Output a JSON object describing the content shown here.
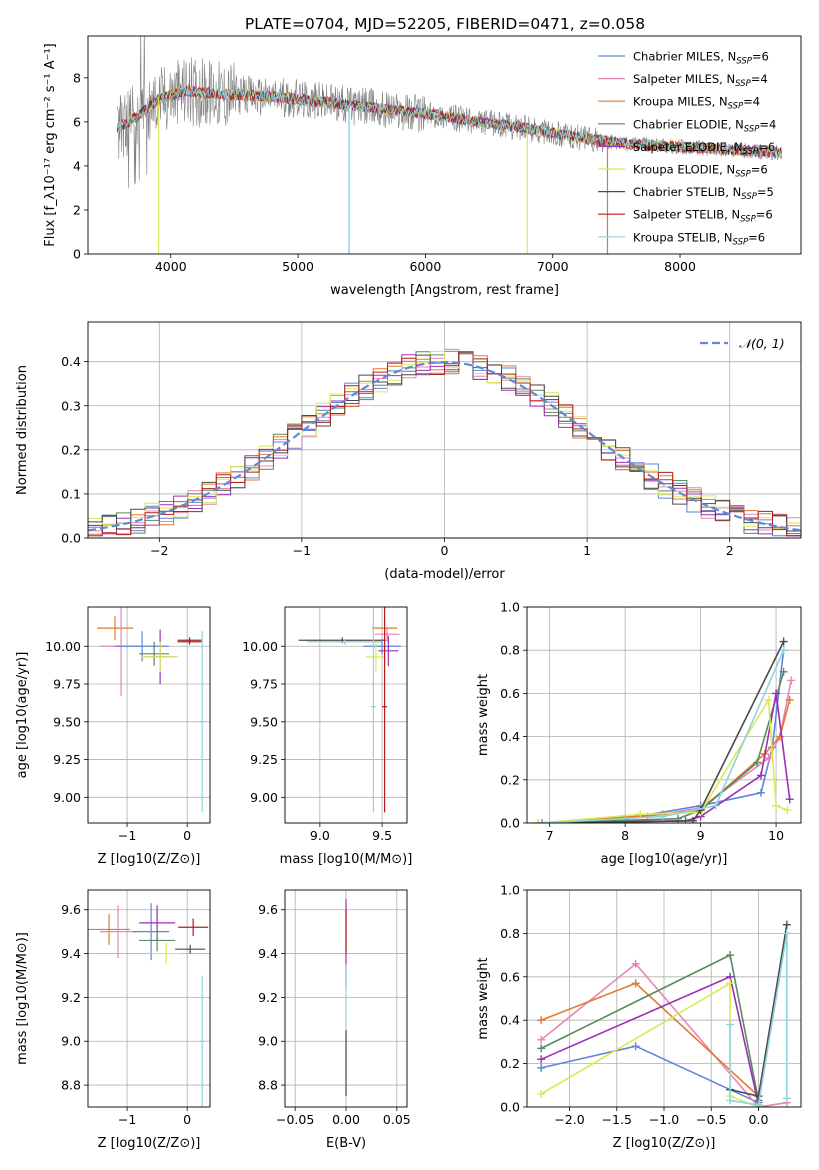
{
  "figure_title": "PLATE=0704, MJD=52205, FIBERID=0471, z=0.058",
  "colors": {
    "chabrier_miles": "#5f86d6",
    "salpeter_miles": "#e884b9",
    "kroupa_miles": "#e07a2f",
    "chabrier_elodie": "#5a8a5f",
    "salpeter_elodie": "#9b30b5",
    "kroupa_elodie": "#d9ea55",
    "chabrier_stelib": "#4a4a4a",
    "salpeter_stelib": "#b51d1d",
    "kroupa_stelib": "#8fd3dd",
    "observed": "#808080",
    "model_cyan": "#6ed3dc",
    "normal": "#5b8bd8"
  },
  "chart_data": [
    {
      "type": "line",
      "panel": "spectrum",
      "xlabel": "wavelength [Angstrom, rest frame]",
      "ylabel": "Flux [f_λ10⁻¹⁷ erg cm⁻² s⁻¹ A⁻¹]",
      "xlim": [
        3350,
        8950
      ],
      "ylim": [
        0,
        9.9
      ],
      "xticks": [
        4000,
        5000,
        6000,
        7000,
        8000
      ],
      "yticks": [
        0,
        2,
        4,
        6,
        8
      ],
      "grid": false,
      "legend_position": "top-right",
      "legend": [
        {
          "key": "chabrier_miles",
          "label": "Chabrier MILES, N",
          "sub": "SSP",
          "suffix": "=6"
        },
        {
          "key": "salpeter_miles",
          "label": "Salpeter MILES, N",
          "sub": "SSP",
          "suffix": "=4"
        },
        {
          "key": "kroupa_miles",
          "label": "Kroupa MILES, N",
          "sub": "SSP",
          "suffix": "=4"
        },
        {
          "key": "chabrier_elodie",
          "label": "Chabrier ELODIE, N",
          "sub": "SSP",
          "suffix": "=4"
        },
        {
          "key": "salpeter_elodie",
          "label": "Salpeter ELODIE, N",
          "sub": "SSP",
          "suffix": "=6"
        },
        {
          "key": "kroupa_elodie",
          "label": "Kroupa ELODIE, N",
          "sub": "SSP",
          "suffix": "=6"
        },
        {
          "key": "chabrier_stelib",
          "label": "Chabrier STELIB, N",
          "sub": "SSP",
          "suffix": "=5"
        },
        {
          "key": "salpeter_stelib",
          "label": "Salpeter STELIB, N",
          "sub": "SSP",
          "suffix": "=6"
        },
        {
          "key": "kroupa_stelib",
          "label": "Kroupa STELIB, N",
          "sub": "SSP",
          "suffix": "=6"
        }
      ],
      "continuum": {
        "x": [
          3580,
          3700,
          3900,
          4100,
          4300,
          4600,
          4900,
          5200,
          5500,
          5800,
          6100,
          6400,
          6700,
          7000,
          7300,
          7600,
          7900,
          8200,
          8500,
          8800
        ],
        "y": [
          5.7,
          6.1,
          7.0,
          7.4,
          7.3,
          7.2,
          7.1,
          6.9,
          6.7,
          6.5,
          6.3,
          6.0,
          5.8,
          5.5,
          5.2,
          5.0,
          4.9,
          4.8,
          4.7,
          4.6
        ]
      },
      "absorption_spikes": [
        {
          "x": 3905,
          "y": 0
        },
        {
          "x": 5400,
          "y": 0
        },
        {
          "x": 6800,
          "y": 0
        },
        {
          "x": 7430,
          "y": 0
        }
      ]
    },
    {
      "type": "line",
      "panel": "residuals",
      "xlabel": "(data-model)/error",
      "ylabel": "Normed distribution",
      "xlim": [
        -2.5,
        2.5
      ],
      "ylim": [
        0,
        0.49
      ],
      "xticks": [
        -2,
        -1,
        0,
        1,
        2
      ],
      "yticks": [
        0.0,
        0.1,
        0.2,
        0.3,
        0.4
      ],
      "grid": true,
      "legend_position": "top-right",
      "legend": [
        {
          "label": "𝒩(0, 1)"
        }
      ],
      "bin_width": 0.1,
      "series": [
        {
          "key": "chabrier_miles",
          "jitter_seed": 1
        },
        {
          "key": "salpeter_miles",
          "jitter_seed": 2
        },
        {
          "key": "kroupa_miles",
          "jitter_seed": 3
        },
        {
          "key": "chabrier_elodie",
          "jitter_seed": 4
        },
        {
          "key": "salpeter_elodie",
          "jitter_seed": 5
        },
        {
          "key": "kroupa_elodie",
          "jitter_seed": 6
        },
        {
          "key": "chabrier_stelib",
          "jitter_seed": 7
        },
        {
          "key": "salpeter_stelib",
          "jitter_seed": 8
        }
      ]
    },
    {
      "type": "scatter",
      "panel": "age_vs_Z",
      "xlabel": "Z [log10(Z/Z⊙)]",
      "ylabel": "age [log10(age/yr)]",
      "xlim": [
        -1.65,
        0.38
      ],
      "ylim": [
        8.83,
        10.26
      ],
      "xticks": [
        -1,
        0
      ],
      "yticks": [
        9.0,
        9.25,
        9.5,
        9.75,
        10.0
      ],
      "grid": true,
      "points": [
        {
          "key": "kroupa_miles",
          "x": -1.2,
          "xerr": 0.3,
          "y": 10.12,
          "yerr": 0.08
        },
        {
          "key": "salpeter_miles",
          "x": -1.1,
          "xerr": 0.35,
          "y": 10.0,
          "yerr": 0.33
        },
        {
          "key": "chabrier_miles",
          "x": -0.75,
          "xerr": 0.45,
          "y": 10.0,
          "yerr": 0.1
        },
        {
          "key": "chabrier_elodie",
          "x": -0.55,
          "xerr": 0.25,
          "y": 9.95,
          "yerr": 0.08
        },
        {
          "key": "salpeter_elodie",
          "x": -0.45,
          "xerr": 0.25,
          "y": 9.93,
          "yerr": 0.18
        },
        {
          "key": "kroupa_elodie",
          "x": -0.45,
          "xerr": 0.3,
          "y": 9.93,
          "yerr": 0.1
        },
        {
          "key": "chabrier_stelib",
          "x": 0.04,
          "xerr": 0.2,
          "y": 10.03,
          "yerr": 0.02
        },
        {
          "key": "salpeter_stelib",
          "x": 0.04,
          "xerr": 0.2,
          "y": 10.04,
          "yerr": 0.02
        },
        {
          "key": "kroupa_stelib",
          "x": 0.25,
          "xerr": 0.05,
          "y": 9.5,
          "yerr": 0.6
        }
      ]
    },
    {
      "type": "scatter",
      "panel": "age_vs_mass",
      "xlabel": "mass [log10(M/M⊙)]",
      "ylabel": "",
      "xlim": [
        8.72,
        9.7
      ],
      "ylim": [
        8.83,
        10.26
      ],
      "xticks": [
        9.0,
        9.5
      ],
      "yticks": [
        9.0,
        9.25,
        9.5,
        9.75,
        10.0
      ],
      "grid": true,
      "points": [
        {
          "key": "chabrier_stelib",
          "x": 9.18,
          "xerr": 0.35,
          "y": 10.04,
          "yerr": 0.02
        },
        {
          "key": "kroupa_stelib",
          "x": 9.2,
          "xerr": 0.3,
          "y": 10.03,
          "yerr": 0.02
        },
        {
          "key": "chabrier_miles",
          "x": 9.5,
          "xerr": 0.15,
          "y": 10.0,
          "yerr": 0.05
        },
        {
          "key": "kroupa_miles",
          "x": 9.52,
          "xerr": 0.1,
          "y": 10.12,
          "yerr": 0.05
        },
        {
          "key": "salpeter_miles",
          "x": 9.54,
          "xerr": 0.1,
          "y": 10.08,
          "yerr": 0.05
        },
        {
          "key": "kroupa_elodie",
          "x": 9.45,
          "xerr": 0.08,
          "y": 9.93,
          "yerr": 0.1
        },
        {
          "key": "salpeter_elodie",
          "x": 9.55,
          "xerr": 0.08,
          "y": 9.97,
          "yerr": 0.1
        },
        {
          "key": "kroupa_stelib",
          "x": 9.43,
          "xerr": 0.02,
          "y": 9.6,
          "yerr": 0.7
        },
        {
          "key": "salpeter_stelib",
          "x": 9.52,
          "xerr": 0.02,
          "y": 9.6,
          "yerr": 0.7
        }
      ]
    },
    {
      "type": "line",
      "panel": "mass_weight_vs_age",
      "xlabel": "age [log10(age/yr)]",
      "ylabel": "mass weight",
      "xlim": [
        6.7,
        10.33
      ],
      "ylim": [
        0,
        1.0
      ],
      "xticks": [
        7,
        8,
        9,
        10
      ],
      "yticks": [
        0.0,
        0.2,
        0.4,
        0.6,
        0.8,
        1.0
      ],
      "grid": true,
      "series": [
        {
          "key": "chabrier_miles",
          "x": [
            6.9,
            8.0,
            9.0,
            9.8,
            9.95,
            10.1
          ],
          "y": [
            0.0,
            0.02,
            0.08,
            0.14,
            0.35,
            0.8
          ]
        },
        {
          "key": "salpeter_miles",
          "x": [
            6.85,
            8.3,
            9.0,
            9.9,
            10.05,
            10.2
          ],
          "y": [
            0.0,
            0.03,
            0.07,
            0.3,
            0.4,
            0.66
          ]
        },
        {
          "key": "kroupa_miles",
          "x": [
            6.85,
            8.5,
            9.0,
            9.85,
            10.05,
            10.18
          ],
          "y": [
            0.0,
            0.04,
            0.06,
            0.32,
            0.4,
            0.57
          ]
        },
        {
          "key": "chabrier_elodie",
          "x": [
            6.9,
            8.7,
            9.0,
            9.75,
            10.1
          ],
          "y": [
            0.0,
            0.02,
            0.06,
            0.28,
            0.7
          ]
        },
        {
          "key": "salpeter_elodie",
          "x": [
            6.9,
            8.8,
            9.0,
            9.8,
            10.0,
            10.18
          ],
          "y": [
            0.0,
            0.01,
            0.03,
            0.22,
            0.6,
            0.11
          ]
        },
        {
          "key": "kroupa_elodie",
          "x": [
            6.85,
            8.2,
            9.0,
            9.9,
            10.0,
            10.15
          ],
          "y": [
            0.0,
            0.04,
            0.05,
            0.57,
            0.08,
            0.06
          ]
        },
        {
          "key": "chabrier_stelib",
          "x": [
            6.9,
            8.9,
            9.0,
            10.1
          ],
          "y": [
            0.0,
            0.01,
            0.06,
            0.84
          ]
        },
        {
          "key": "kroupa_stelib",
          "x": [
            6.9,
            8.5,
            9.2,
            10.1
          ],
          "y": [
            0.0,
            0.03,
            0.08,
            0.8
          ]
        }
      ]
    },
    {
      "type": "scatter",
      "panel": "mass_vs_Z",
      "xlabel": "Z [log10(Z/Z⊙)]",
      "ylabel": "mass [log10(M/M⊙)]",
      "xlim": [
        -1.65,
        0.38
      ],
      "ylim": [
        8.7,
        9.69
      ],
      "xticks": [
        -1,
        0
      ],
      "yticks": [
        8.8,
        9.0,
        9.2,
        9.4,
        9.6
      ],
      "grid": true,
      "points": [
        {
          "key": "kroupa_miles",
          "x": -1.3,
          "xerr": 0.35,
          "y": 9.51,
          "yerr": 0.07
        },
        {
          "key": "salpeter_miles",
          "x": -1.15,
          "xerr": 0.3,
          "y": 9.5,
          "yerr": 0.12
        },
        {
          "key": "chabrier_miles",
          "x": -0.6,
          "xerr": 0.3,
          "y": 9.5,
          "yerr": 0.13
        },
        {
          "key": "salpeter_elodie",
          "x": -0.5,
          "xerr": 0.3,
          "y": 9.54,
          "yerr": 0.08
        },
        {
          "key": "chabrier_elodie",
          "x": -0.5,
          "xerr": 0.3,
          "y": 9.46,
          "yerr": 0.05
        },
        {
          "key": "kroupa_elodie",
          "x": -0.35,
          "xerr": 0.25,
          "y": 9.4,
          "yerr": 0.05
        },
        {
          "key": "chabrier_stelib",
          "x": 0.05,
          "xerr": 0.25,
          "y": 9.42,
          "yerr": 0.02
        },
        {
          "key": "salpeter_stelib",
          "x": 0.1,
          "xerr": 0.25,
          "y": 9.52,
          "yerr": 0.04
        },
        {
          "key": "kroupa_stelib",
          "x": 0.25,
          "xerr": 0.04,
          "y": 9.0,
          "yerr": 0.3
        }
      ]
    },
    {
      "type": "scatter",
      "panel": "mass_vs_ebv",
      "xlabel": "E(B-V)",
      "ylabel": "",
      "xlim": [
        -0.06,
        0.06
      ],
      "ylim": [
        8.7,
        9.69
      ],
      "xticks": [
        -0.05,
        0.0,
        0.05
      ],
      "yticks": [
        8.8,
        9.0,
        9.2,
        9.4,
        9.6
      ],
      "grid": true,
      "points": [
        {
          "key": "salpeter_elodie",
          "x": 0.0,
          "xerr": 0.0,
          "y": 9.45,
          "yerr": 0.2
        },
        {
          "key": "salpeter_stelib",
          "x": 0.0,
          "xerr": 0.0,
          "y": 9.5,
          "yerr": 0.1
        },
        {
          "key": "kroupa_stelib",
          "x": 0.0,
          "xerr": 0.0,
          "y": 9.1,
          "yerr": 0.25
        },
        {
          "key": "chabrier_stelib",
          "x": 0.0,
          "xerr": 0.0,
          "y": 8.9,
          "yerr": 0.15
        }
      ]
    },
    {
      "type": "line",
      "panel": "mass_weight_vs_Z",
      "xlabel": "Z [log10(Z/Z⊙)]",
      "ylabel": "mass weight",
      "xlim": [
        -2.45,
        0.45
      ],
      "ylim": [
        0,
        1.0
      ],
      "xticks": [
        -2.0,
        -1.5,
        -1.0,
        -0.5,
        0.0
      ],
      "yticks": [
        0.0,
        0.2,
        0.4,
        0.6,
        0.8,
        1.0
      ],
      "grid": true,
      "series": [
        {
          "key": "chabrier_miles",
          "x": [
            -2.3,
            -1.3,
            0.0
          ],
          "y": [
            0.18,
            0.28,
            0.02
          ]
        },
        {
          "key": "salpeter_miles",
          "x": [
            -2.3,
            -1.3,
            0.0,
            0.3
          ],
          "y": [
            0.31,
            0.66,
            0.0,
            0.02
          ]
        },
        {
          "key": "kroupa_miles",
          "x": [
            -2.3,
            -1.3,
            0.0
          ],
          "y": [
            0.4,
            0.57,
            0.05
          ]
        },
        {
          "key": "chabrier_elodie",
          "x": [
            -2.3,
            -0.3,
            0.0
          ],
          "y": [
            0.27,
            0.7,
            0.03
          ]
        },
        {
          "key": "salpeter_elodie",
          "x": [
            -2.3,
            -0.3,
            0.0
          ],
          "y": [
            0.22,
            0.6,
            0.01
          ]
        },
        {
          "key": "kroupa_elodie",
          "x": [
            -2.3,
            -0.3,
            -0.3,
            0.0
          ],
          "y": [
            0.06,
            0.57,
            0.05,
            0.0
          ]
        },
        {
          "key": "chabrier_stelib",
          "x": [
            -0.3,
            0.0,
            0.3
          ],
          "y": [
            0.08,
            0.05,
            0.84
          ]
        },
        {
          "key": "kroupa_stelib",
          "x": [
            -0.3,
            -0.3,
            0.0,
            0.3,
            0.3
          ],
          "y": [
            0.38,
            0.03,
            0.01,
            0.8,
            0.04
          ]
        }
      ]
    }
  ]
}
